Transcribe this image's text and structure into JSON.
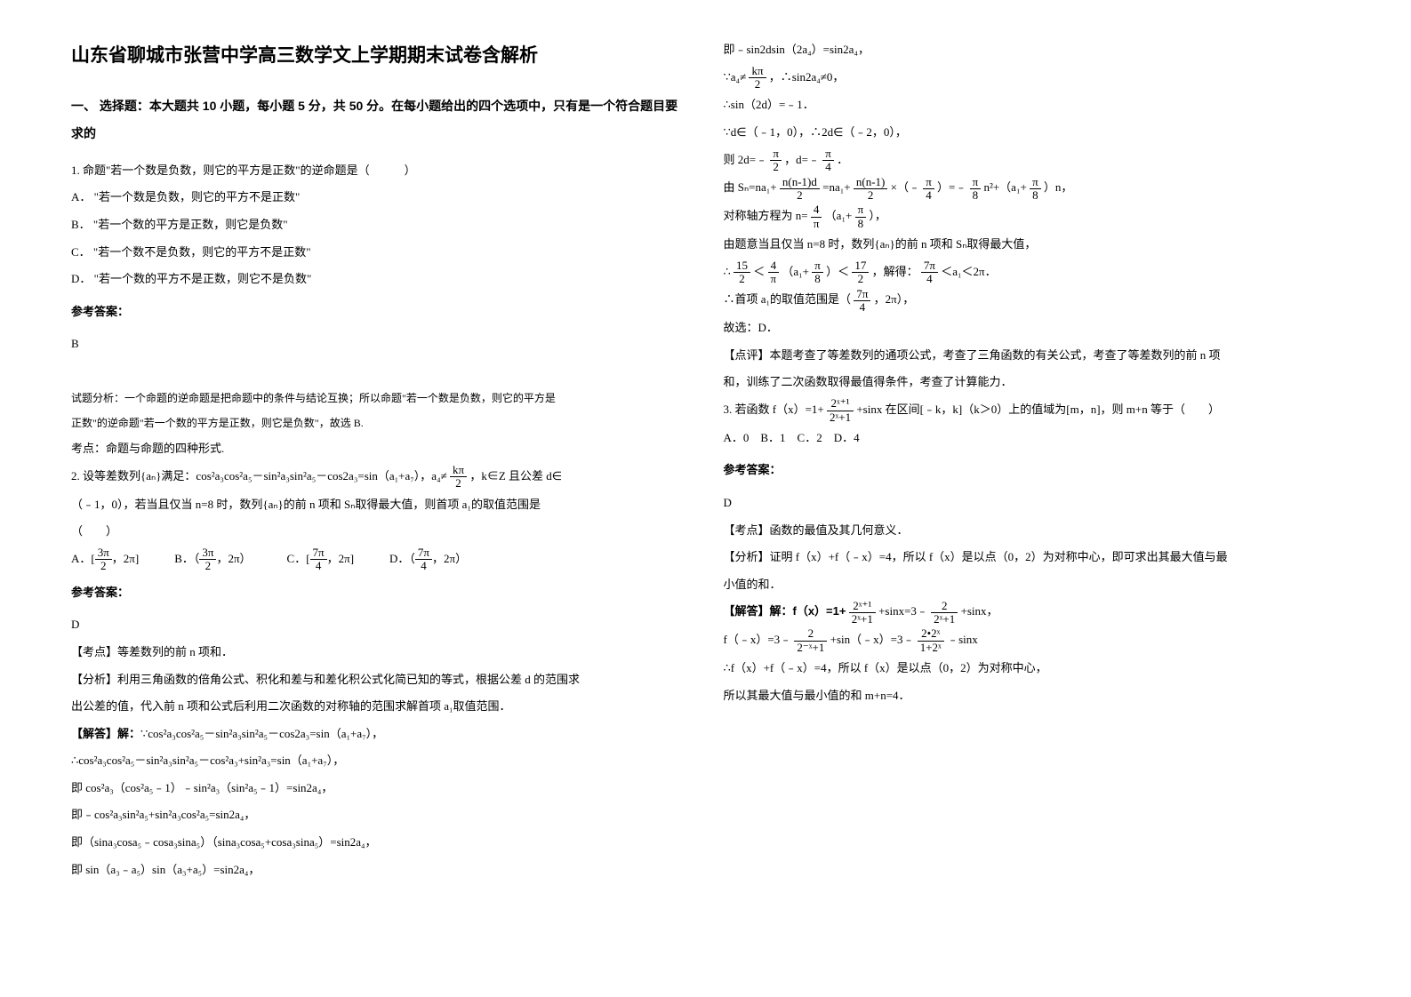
{
  "title": "山东省聊城市张营中学高三数学文上学期期末试卷含解析",
  "section1_header": "一、 选择题：本大题共 10 小题，每小题 5 分，共 50 分。在每小题给出的四个选项中，只有是一个符合题目要求的",
  "q1_stem": "1. 命题\"若一个数是负数，则它的平方是正数\"的逆命题是（　　　）",
  "q1_a": "A． \"若一个数是负数，则它的平方不是正数\"",
  "q1_b": "B． \"若一个数的平方是正数，则它是负数\"",
  "q1_c": "C． \"若一个数不是负数，则它的平方不是正数\"",
  "q1_d": "D． \"若一个数的平方不是正数，则它不是负数\"",
  "answer_label": "参考答案：",
  "q1_answer": "B",
  "q1_analysis1": "试题分析：一个命题的逆命题是把命题中的条件与结论互换；所以命题\"若一个数是负数，则它的平方是",
  "q1_analysis2": "正数\"的逆命题\"若一个数的平方是正数，则它是负数\"，故选 B.",
  "q1_point": "考点：命题与命题的四种形式.",
  "q2_stem_p1": "2. 设等差数列{aₙ}满足：cos²a₃cos²a₅－sin²a₃sin²a₅－cos2a₃=sin（a₁+a₇），a₄≠",
  "q2_stem_frac": {
    "num": "kπ",
    "den": "2"
  },
  "q2_stem_p2": "，k∈Z 且公差 d∈",
  "q2_stem_line2": "（﹣1，0），若当且仅当 n=8 时，数列{aₙ}的前 n 项和 Sₙ取得最大值，则首项 a₁的取值范围是",
  "q2_stem_line3": "（　　）",
  "q2_a_pre": "A．[",
  "q2_a_frac": {
    "num": "3π",
    "den": "2"
  },
  "q2_a_post": "，2π]",
  "q2_b_pre": "B．（",
  "q2_b_frac": {
    "num": "3π",
    "den": "2"
  },
  "q2_b_post": "，2π）",
  "q2_c_pre": "C．[",
  "q2_c_frac": {
    "num": "7π",
    "den": "4"
  },
  "q2_c_post": "，2π]",
  "q2_d_pre": "D．（",
  "q2_d_frac": {
    "num": "7π",
    "den": "4"
  },
  "q2_d_post": "，2π）",
  "q2_answer": "D",
  "q2_point": "【考点】等差数列的前 n 项和．",
  "q2_analysis1": "【分析】利用三角函数的倍角公式、积化和差与和差化积公式化简已知的等式，根据公差 d 的范围求",
  "q2_analysis2": "出公差的值，代入前 n 项和公式后利用二次函数的对称轴的范围求解首项 a₁取值范围．",
  "q2_solve_label": "【解答】解：",
  "q2_s1": "∵cos²a₃cos²a₅－sin²a₃sin²a₅－cos2a₃=sin（a₁+a₇），",
  "q2_s2": "∴cos²a₃cos²a₅－sin²a₃sin²a₅－cos²a₃+sin²a₃=sin（a₁+a₇），",
  "q2_s3": "即 cos²a₃（cos²a₅﹣1）﹣sin²a₃（sin²a₅﹣1）=sin2a₄，",
  "q2_s4": "即﹣cos²a₃sin²a₅+sin²a₃cos²a₅=sin2a₄，",
  "q2_s5": "即（sina₃cosa₅﹣cosa₃sina₅）（sina₃cosa₅+cosa₃sina₅）=sin2a₄，",
  "q2_s6": "即 sin（a₃﹣a₅）sin（a₃+a₅）=sin2a₄，",
  "col2_s1": "即﹣sin2dsin（2a₄）=sin2a₄，",
  "col2_s2_pre": "∵a₄≠",
  "col2_s2_frac": {
    "num": "kπ",
    "den": "2"
  },
  "col2_s2_post": "，∴sin2a₄≠0，",
  "col2_s3": "∴sin（2d）=﹣1．",
  "col2_s4": "∵d∈（﹣1，0），∴2d∈（﹣2，0），",
  "col2_s5_pre": "则 2d=﹣",
  "col2_s5_f1": {
    "num": "π",
    "den": "2"
  },
  "col2_s5_mid": "，d=﹣",
  "col2_s5_f2": {
    "num": "π",
    "den": "4"
  },
  "col2_s5_post": "．",
  "col2_s6_pre": "由 Sₙ=na₁+",
  "col2_s6_f1": {
    "num": "n(n-1)d",
    "den": "2"
  },
  "col2_s6_mid1": "=na₁+",
  "col2_s6_f2": {
    "num": "n(n-1)",
    "den": "2"
  },
  "col2_s6_mid2": "×（﹣",
  "col2_s6_f3": {
    "num": "π",
    "den": "4"
  },
  "col2_s6_mid3": "）=﹣",
  "col2_s6_f4": {
    "num": "π",
    "den": "8"
  },
  "col2_s6_mid4": "n²+（a₁+",
  "col2_s6_f5": {
    "num": "π",
    "den": "8"
  },
  "col2_s6_post": "）n，",
  "col2_s7_pre": "对称轴方程为 n=",
  "col2_s7_f1": {
    "num": "4",
    "den": "π"
  },
  "col2_s7_mid": "（a₁+",
  "col2_s7_f2": {
    "num": "π",
    "den": "8"
  },
  "col2_s7_post": "），",
  "col2_s8": "由题意当且仅当 n=8 时，数列{aₙ}的前 n 项和 Sₙ取得最大值，",
  "col2_s9_pre": "∴",
  "col2_s9_f1": {
    "num": "15",
    "den": "2"
  },
  "col2_s9_mid1": "＜",
  "col2_s9_f2": {
    "num": "4",
    "den": "π"
  },
  "col2_s9_mid2": "（a₁+",
  "col2_s9_f3": {
    "num": "π",
    "den": "8"
  },
  "col2_s9_mid3": "）＜",
  "col2_s9_f4": {
    "num": "17",
    "den": "2"
  },
  "col2_s9_mid4": "，解得：",
  "col2_s9_f5": {
    "num": "7π",
    "den": "4"
  },
  "col2_s9_post": "＜a₁＜2π．",
  "col2_s10_pre": "∴首项 a₁的取值范围是（",
  "col2_s10_f": {
    "num": "7π",
    "den": "4"
  },
  "col2_s10_post": "，2π），",
  "col2_s11": "故选：D．",
  "col2_comment1": "【点评】本题考查了等差数列的通项公式，考查了三角函数的有关公式，考查了等差数列的前 n 项",
  "col2_comment2": "和，训练了二次函数取得最值得条件，考查了计算能力．",
  "q3_stem_pre": "3. 若函数 f（x）=1+",
  "q3_stem_f": {
    "num": "2ˣ⁺¹",
    "den": "2ˣ+1"
  },
  "q3_stem_post": "+sinx 在区间[﹣k，k]（k＞0）上的值域为[m，n]，则 m+n 等于（　　）",
  "q3_choices": "A．0　B．1　C．2　D．4",
  "q3_answer": "D",
  "q3_point": "【考点】函数的最值及其几何意义．",
  "q3_analysis1": "【分析】证明 f（x）+f（﹣x）=4，所以 f（x）是以点（0，2）为对称中心，即可求出其最大值与最",
  "q3_analysis2": "小值的和．",
  "q3_s1_pre": "【解答】解：f（x）=1+",
  "q3_s1_f1": {
    "num": "2ˣ⁺¹",
    "den": "2ˣ+1"
  },
  "q3_s1_mid": "+sinx=3﹣",
  "q3_s1_f2": {
    "num": "2",
    "den": "2ˣ+1"
  },
  "q3_s1_post": "+sinx，",
  "q3_s2_pre": "f（﹣x）=3﹣",
  "q3_s2_f1": {
    "num": "2",
    "den": "2⁻ˣ+1"
  },
  "q3_s2_mid": "+sin（﹣x）=3﹣",
  "q3_s2_f2": {
    "num": "2•2ˣ",
    "den": "1+2ˣ"
  },
  "q3_s2_post": "﹣sinx",
  "q3_s3": "∴f（x）+f（﹣x）=4，所以 f（x）是以点（0，2）为对称中心，",
  "q3_s4": "所以其最大值与最小值的和 m+n=4．"
}
